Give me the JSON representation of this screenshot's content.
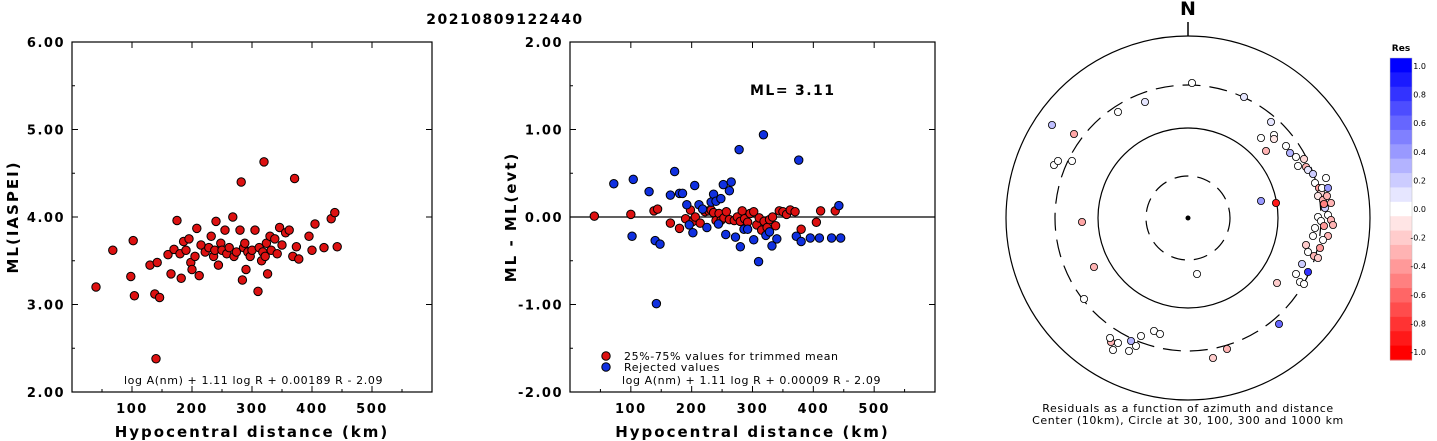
{
  "title": "20210809122440",
  "charts": [
    {
      "id": "left",
      "type": "scatter",
      "xlabel": "Hypocentral distance (km)",
      "ylabel": "ML(IASPEI)",
      "xlim": [
        0,
        600
      ],
      "ylim": [
        2.0,
        6.0
      ],
      "xticks": [
        "100",
        "200",
        "300",
        "400",
        "500"
      ],
      "yticks": [
        "2.00",
        "3.00",
        "4.00",
        "5.00",
        "6.00"
      ],
      "formula": "log A(nm) + 1.11 log R + 0.00189 R - 2.09",
      "point_color": "#dd1111",
      "points": [
        [
          40,
          3.2
        ],
        [
          68,
          3.62
        ],
        [
          98,
          3.32
        ],
        [
          102,
          3.73
        ],
        [
          104,
          3.1
        ],
        [
          130,
          3.45
        ],
        [
          138,
          3.12
        ],
        [
          140,
          2.38
        ],
        [
          142,
          3.48
        ],
        [
          146,
          3.08
        ],
        [
          160,
          3.57
        ],
        [
          165,
          3.35
        ],
        [
          170,
          3.63
        ],
        [
          175,
          3.96
        ],
        [
          180,
          3.58
        ],
        [
          182,
          3.3
        ],
        [
          186,
          3.72
        ],
        [
          190,
          3.62
        ],
        [
          195,
          3.75
        ],
        [
          198,
          3.48
        ],
        [
          200,
          3.4
        ],
        [
          205,
          3.55
        ],
        [
          208,
          3.87
        ],
        [
          212,
          3.33
        ],
        [
          215,
          3.68
        ],
        [
          222,
          3.6
        ],
        [
          228,
          3.65
        ],
        [
          232,
          3.78
        ],
        [
          236,
          3.55
        ],
        [
          238,
          3.62
        ],
        [
          240,
          3.95
        ],
        [
          244,
          3.45
        ],
        [
          248,
          3.7
        ],
        [
          250,
          3.62
        ],
        [
          255,
          3.85
        ],
        [
          258,
          3.58
        ],
        [
          262,
          3.65
        ],
        [
          268,
          4.0
        ],
        [
          270,
          3.55
        ],
        [
          274,
          3.6
        ],
        [
          280,
          3.85
        ],
        [
          282,
          4.4
        ],
        [
          284,
          3.28
        ],
        [
          286,
          3.65
        ],
        [
          288,
          3.7
        ],
        [
          290,
          3.4
        ],
        [
          293,
          3.6
        ],
        [
          297,
          3.55
        ],
        [
          300,
          3.62
        ],
        [
          305,
          3.85
        ],
        [
          310,
          3.15
        ],
        [
          312,
          3.65
        ],
        [
          316,
          3.5
        ],
        [
          318,
          3.6
        ],
        [
          320,
          4.63
        ],
        [
          322,
          3.55
        ],
        [
          324,
          3.7
        ],
        [
          326,
          3.35
        ],
        [
          330,
          3.78
        ],
        [
          332,
          3.62
        ],
        [
          338,
          3.75
        ],
        [
          342,
          3.58
        ],
        [
          346,
          3.88
        ],
        [
          350,
          3.68
        ],
        [
          356,
          3.82
        ],
        [
          362,
          3.85
        ],
        [
          368,
          3.55
        ],
        [
          371,
          4.44
        ],
        [
          374,
          3.66
        ],
        [
          378,
          3.52
        ],
        [
          395,
          3.78
        ],
        [
          400,
          3.62
        ],
        [
          405,
          3.92
        ],
        [
          420,
          3.65
        ],
        [
          432,
          3.98
        ],
        [
          438,
          4.05
        ],
        [
          442,
          3.66
        ]
      ]
    },
    {
      "id": "middle",
      "type": "scatter",
      "xlabel": "Hypocentral distance (km)",
      "ylabel": "ML - ML(evt)",
      "xlim": [
        0,
        600
      ],
      "ylim": [
        -2.0,
        2.0
      ],
      "xticks": [
        "100",
        "200",
        "300",
        "400",
        "500"
      ],
      "yticks": [
        "-2.00",
        "-1.00",
        "0.00",
        "1.00",
        "2.00"
      ],
      "ml_label": "ML=",
      "ml_value": "3.11",
      "legend": [
        {
          "label": "25%-75% values for trimmed mean",
          "color": "#dd1111"
        },
        {
          "label": "Rejected values",
          "color": "#1030e0"
        }
      ],
      "formula": "log A(nm) + 1.11 log R + 0.00009 R - 2.09",
      "series": [
        {
          "name": "25%-75% values for trimmed mean",
          "color": "#dd1111",
          "points": [
            [
              40,
              0.01
            ],
            [
              100,
              0.03
            ],
            [
              138,
              0.07
            ],
            [
              144,
              0.09
            ],
            [
              165,
              -0.07
            ],
            [
              180,
              -0.13
            ],
            [
              190,
              -0.02
            ],
            [
              198,
              0.08
            ],
            [
              202,
              -0.05
            ],
            [
              206,
              0.0
            ],
            [
              214,
              -0.07
            ],
            [
              222,
              0.06
            ],
            [
              228,
              0.07
            ],
            [
              232,
              0.08
            ],
            [
              236,
              0.05
            ],
            [
              240,
              -0.04
            ],
            [
              245,
              0.04
            ],
            [
              248,
              -0.04
            ],
            [
              253,
              -0.01
            ],
            [
              257,
              0.06
            ],
            [
              262,
              -0.03
            ],
            [
              270,
              -0.04
            ],
            [
              275,
              0.0
            ],
            [
              280,
              -0.05
            ],
            [
              283,
              0.07
            ],
            [
              287,
              -0.02
            ],
            [
              292,
              -0.06
            ],
            [
              296,
              0.04
            ],
            [
              302,
              0.06
            ],
            [
              307,
              -0.09
            ],
            [
              311,
              -0.01
            ],
            [
              315,
              -0.15
            ],
            [
              319,
              -0.05
            ],
            [
              324,
              -0.12
            ],
            [
              328,
              -0.03
            ],
            [
              333,
              0.0
            ],
            [
              338,
              -0.1
            ],
            [
              344,
              0.07
            ],
            [
              350,
              0.06
            ],
            [
              356,
              0.03
            ],
            [
              362,
              0.08
            ],
            [
              370,
              0.06
            ],
            [
              380,
              -0.14
            ],
            [
              405,
              -0.06
            ],
            [
              412,
              0.07
            ],
            [
              436,
              0.07
            ]
          ]
        },
        {
          "name": "Rejected values",
          "color": "#1030e0",
          "points": [
            [
              72,
              0.38
            ],
            [
              102,
              -0.22
            ],
            [
              104,
              0.43
            ],
            [
              130,
              0.29
            ],
            [
              140,
              -0.27
            ],
            [
              142,
              -0.99
            ],
            [
              148,
              -0.31
            ],
            [
              165,
              0.25
            ],
            [
              172,
              0.52
            ],
            [
              180,
              0.27
            ],
            [
              185,
              0.27
            ],
            [
              192,
              0.14
            ],
            [
              196,
              -0.09
            ],
            [
              202,
              -0.18
            ],
            [
              205,
              0.36
            ],
            [
              212,
              0.14
            ],
            [
              218,
              0.09
            ],
            [
              225,
              -0.12
            ],
            [
              232,
              0.17
            ],
            [
              236,
              0.26
            ],
            [
              240,
              0.18
            ],
            [
              244,
              -0.08
            ],
            [
              248,
              0.21
            ],
            [
              252,
              0.37
            ],
            [
              256,
              -0.2
            ],
            [
              262,
              0.3
            ],
            [
              265,
              0.4
            ],
            [
              272,
              -0.23
            ],
            [
              278,
              0.77
            ],
            [
              280,
              -0.34
            ],
            [
              286,
              -0.14
            ],
            [
              292,
              -0.14
            ],
            [
              302,
              -0.26
            ],
            [
              310,
              -0.51
            ],
            [
              318,
              0.94
            ],
            [
              322,
              -0.21
            ],
            [
              328,
              -0.17
            ],
            [
              332,
              -0.33
            ],
            [
              340,
              -0.25
            ],
            [
              372,
              -0.22
            ],
            [
              376,
              0.65
            ],
            [
              380,
              -0.28
            ],
            [
              395,
              -0.24
            ],
            [
              410,
              -0.24
            ],
            [
              430,
              -0.24
            ],
            [
              442,
              0.13
            ],
            [
              445,
              -0.24
            ]
          ]
        }
      ]
    }
  ],
  "polar": {
    "north_label": "N",
    "caption_line1": "Residuals as a function of azimuth and distance",
    "caption_line2": "Center (10km), Circle at 30, 100, 300 and 1000 km",
    "colorbar_title": "Res",
    "colorbar_ticks": [
      "1.0",
      "0.8",
      "0.6",
      "0.4",
      "0.2",
      "0.0",
      "-0.2",
      "-0.4",
      "-0.6",
      "-0.8",
      "-1.0"
    ],
    "stations": [
      [
        -136,
        -93,
        0.25
      ],
      [
        -114,
        -84,
        -0.35
      ],
      [
        -70,
        -106,
        0.05
      ],
      [
        -43,
        -116,
        0.1
      ],
      [
        4,
        -135,
        0.05
      ],
      [
        56,
        -121,
        0.1
      ],
      [
        83,
        -96,
        0.1
      ],
      [
        78,
        -67,
        -0.3
      ],
      [
        73,
        -80,
        0.05
      ],
      [
        86,
        -83,
        0.05
      ],
      [
        86,
        -79,
        -0.1
      ],
      [
        98,
        -72,
        0.05
      ],
      [
        102,
        -65,
        0.3
      ],
      [
        108,
        -61,
        0.05
      ],
      [
        110,
        -52,
        0.05
      ],
      [
        116,
        -59,
        -0.15
      ],
      [
        118,
        -51,
        -0.3
      ],
      [
        120,
        -48,
        0.1
      ],
      [
        125,
        -44,
        0.2
      ],
      [
        127,
        -35,
        0.05
      ],
      [
        131,
        -30,
        -0.4
      ],
      [
        133,
        -25,
        -0.15
      ],
      [
        134,
        -30,
        0.05
      ],
      [
        138,
        -40,
        0.05
      ],
      [
        130,
        -22,
        -0.1
      ],
      [
        135,
        -18,
        -0.3
      ],
      [
        137,
        -10,
        0.2
      ],
      [
        136,
        -14,
        -0.5
      ],
      [
        139,
        -22,
        -0.3
      ],
      [
        140,
        -30,
        0.4
      ],
      [
        143,
        -15,
        -0.3
      ],
      [
        88,
        -15,
        -0.9
      ],
      [
        73,
        -17,
        0.4
      ],
      [
        140,
        -3,
        0.05
      ],
      [
        143,
        2,
        -0.3
      ],
      [
        145,
        7,
        -0.3
      ],
      [
        130,
        -1,
        0.05
      ],
      [
        133,
        3,
        0.05
      ],
      [
        127,
        10,
        0.05
      ],
      [
        136,
        8,
        -0.4
      ],
      [
        140,
        18,
        -0.3
      ],
      [
        135,
        22,
        0.05
      ],
      [
        125,
        18,
        0.05
      ],
      [
        118,
        27,
        -0.2
      ],
      [
        132,
        30,
        -0.4
      ],
      [
        126,
        38,
        -0.3
      ],
      [
        120,
        34,
        0.05
      ],
      [
        114,
        46,
        0.2
      ],
      [
        130,
        40,
        -0.2
      ],
      [
        108,
        56,
        0.05
      ],
      [
        112,
        64,
        0.05
      ],
      [
        120,
        54,
        0.8
      ],
      [
        116,
        66,
        0.05
      ],
      [
        89,
        65,
        -0.2
      ],
      [
        9,
        56,
        0.05
      ],
      [
        91,
        106,
        0.6
      ],
      [
        39,
        131,
        -0.3
      ],
      [
        25,
        140,
        -0.2
      ],
      [
        -34,
        113,
        0.05
      ],
      [
        -47,
        118,
        0.05
      ],
      [
        -52,
        128,
        0.05
      ],
      [
        -57,
        123,
        0.3
      ],
      [
        -59,
        133,
        0.05
      ],
      [
        -70,
        125,
        0.05
      ],
      [
        -75,
        132,
        0.05
      ],
      [
        -77,
        124,
        -0.3
      ],
      [
        -104,
        81,
        0.05
      ],
      [
        -94,
        49,
        -0.3
      ],
      [
        -106,
        4,
        -0.35
      ],
      [
        -134,
        -53,
        0.05
      ],
      [
        -130,
        -57,
        0.05
      ],
      [
        -116,
        -57,
        0.05
      ],
      [
        -78,
        120,
        0.05
      ],
      [
        -28,
        116,
        0.05
      ]
    ]
  }
}
